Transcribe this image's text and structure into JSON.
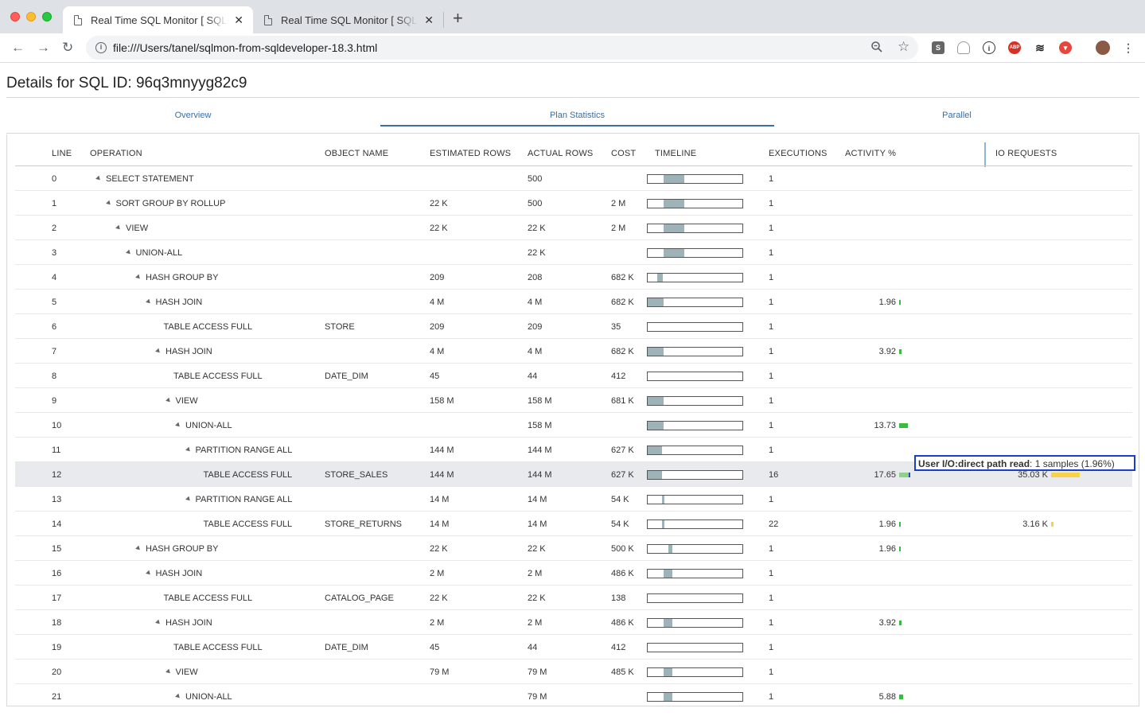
{
  "browser": {
    "tabs": [
      {
        "label": "Real Time SQL Monitor [ SQL ID: 96q3mnyyg82c9 ]",
        "close": "✕"
      },
      {
        "label": "Real Time SQL Monitor [ SQL ID: 96q3mnyyg82c9 ]",
        "close": "✕"
      }
    ],
    "new_tab": "+",
    "url": "file:///Users/tanel/sqlmon-from-sqldeveloper-18.3.html",
    "extensions": [
      "S",
      "ABP"
    ]
  },
  "page": {
    "title": "Details for SQL ID: 96q3mnyyg82c9",
    "tabs": [
      "Overview",
      "Plan Statistics",
      "Parallel"
    ],
    "active_tab": "Plan Statistics"
  },
  "columns": [
    "LINE",
    "OPERATION",
    "OBJECT NAME",
    "ESTIMATED ROWS",
    "ACTUAL ROWS",
    "COST",
    "TIMELINE",
    "EXECUTIONS",
    "ACTIVITY %",
    "IO REQUESTS"
  ],
  "rows": [
    {
      "line": "0",
      "depth": 0,
      "expand": true,
      "op": "SELECT STATEMENT",
      "obj": "",
      "est": "",
      "act": "500",
      "cost": "",
      "tl": [
        0.17,
        0.22
      ],
      "exec": "1",
      "activity": "",
      "act_pct": 0,
      "io": "",
      "io_frac": 0
    },
    {
      "line": "1",
      "depth": 1,
      "expand": true,
      "op": "SORT GROUP BY ROLLUP",
      "obj": "",
      "est": "22 K",
      "act": "500",
      "cost": "2 M",
      "tl": [
        0.17,
        0.22
      ],
      "exec": "1",
      "activity": "",
      "act_pct": 0,
      "io": "",
      "io_frac": 0
    },
    {
      "line": "2",
      "depth": 2,
      "expand": true,
      "op": "VIEW",
      "obj": "",
      "est": "22 K",
      "act": "22 K",
      "cost": "2 M",
      "tl": [
        0.17,
        0.22
      ],
      "exec": "1",
      "activity": "",
      "act_pct": 0,
      "io": "",
      "io_frac": 0
    },
    {
      "line": "3",
      "depth": 3,
      "expand": true,
      "op": "UNION-ALL",
      "obj": "",
      "est": "",
      "act": "22 K",
      "cost": "",
      "tl": [
        0.17,
        0.22
      ],
      "exec": "1",
      "activity": "",
      "act_pct": 0,
      "io": "",
      "io_frac": 0
    },
    {
      "line": "4",
      "depth": 4,
      "expand": true,
      "op": "HASH GROUP BY",
      "obj": "",
      "est": "209",
      "act": "208",
      "cost": "682 K",
      "tl": [
        0.1,
        0.06
      ],
      "exec": "1",
      "activity": "",
      "act_pct": 0,
      "io": "",
      "io_frac": 0
    },
    {
      "line": "5",
      "depth": 5,
      "expand": true,
      "op": "HASH JOIN",
      "obj": "",
      "est": "4 M",
      "act": "4 M",
      "cost": "682 K",
      "tl": [
        0.0,
        0.17
      ],
      "exec": "1",
      "activity": "1.96",
      "act_pct": 1.96,
      "io": "",
      "io_frac": 0
    },
    {
      "line": "6",
      "depth": 7,
      "expand": false,
      "op": "TABLE ACCESS FULL",
      "obj": "STORE",
      "est": "209",
      "act": "209",
      "cost": "35",
      "tl": [
        0,
        0
      ],
      "exec": "1",
      "activity": "",
      "act_pct": 0,
      "io": "",
      "io_frac": 0
    },
    {
      "line": "7",
      "depth": 6,
      "expand": true,
      "op": "HASH JOIN",
      "obj": "",
      "est": "4 M",
      "act": "4 M",
      "cost": "682 K",
      "tl": [
        0.0,
        0.17
      ],
      "exec": "1",
      "activity": "3.92",
      "act_pct": 3.92,
      "io": "",
      "io_frac": 0
    },
    {
      "line": "8",
      "depth": 8,
      "expand": false,
      "op": "TABLE ACCESS FULL",
      "obj": "DATE_DIM",
      "est": "45",
      "act": "44",
      "cost": "412",
      "tl": [
        0,
        0
      ],
      "exec": "1",
      "activity": "",
      "act_pct": 0,
      "io": "",
      "io_frac": 0
    },
    {
      "line": "9",
      "depth": 7,
      "expand": true,
      "op": "VIEW",
      "obj": "",
      "est": "158 M",
      "act": "158 M",
      "cost": "681 K",
      "tl": [
        0.0,
        0.17
      ],
      "exec": "1",
      "activity": "",
      "act_pct": 0,
      "io": "",
      "io_frac": 0
    },
    {
      "line": "10",
      "depth": 8,
      "expand": true,
      "op": "UNION-ALL",
      "obj": "",
      "est": "",
      "act": "158 M",
      "cost": "",
      "tl": [
        0.0,
        0.17
      ],
      "exec": "1",
      "activity": "13.73",
      "act_pct": 13.73,
      "io": "",
      "io_frac": 0
    },
    {
      "line": "11",
      "depth": 9,
      "expand": true,
      "op": "PARTITION RANGE ALL",
      "obj": "",
      "est": "144 M",
      "act": "144 M",
      "cost": "627 K",
      "tl": [
        0.0,
        0.15
      ],
      "exec": "1",
      "activity": "",
      "act_pct": 0,
      "io": "",
      "io_frac": 0
    },
    {
      "line": "12",
      "depth": 11,
      "expand": false,
      "op": "TABLE ACCESS FULL",
      "obj": "STORE_SALES",
      "est": "144 M",
      "act": "144 M",
      "cost": "627 K",
      "tl": [
        0.0,
        0.15
      ],
      "exec": "16",
      "activity": "17.65",
      "act_pct": 17.65,
      "io": "35.03 K",
      "io_frac": 1.0,
      "highlight": true
    },
    {
      "line": "13",
      "depth": 9,
      "expand": true,
      "op": "PARTITION RANGE ALL",
      "obj": "",
      "est": "14 M",
      "act": "14 M",
      "cost": "54 K",
      "tl": [
        0.15,
        0.02
      ],
      "exec": "1",
      "activity": "",
      "act_pct": 0,
      "io": "",
      "io_frac": 0
    },
    {
      "line": "14",
      "depth": 11,
      "expand": false,
      "op": "TABLE ACCESS FULL",
      "obj": "STORE_RETURNS",
      "est": "14 M",
      "act": "14 M",
      "cost": "54 K",
      "tl": [
        0.15,
        0.02
      ],
      "exec": "22",
      "activity": "1.96",
      "act_pct": 1.96,
      "io": "3.16 K",
      "io_frac": 0.09
    },
    {
      "line": "15",
      "depth": 4,
      "expand": true,
      "op": "HASH GROUP BY",
      "obj": "",
      "est": "22 K",
      "act": "22 K",
      "cost": "500 K",
      "tl": [
        0.22,
        0.04
      ],
      "exec": "1",
      "activity": "1.96",
      "act_pct": 1.96,
      "io": "",
      "io_frac": 0
    },
    {
      "line": "16",
      "depth": 5,
      "expand": true,
      "op": "HASH JOIN",
      "obj": "",
      "est": "2 M",
      "act": "2 M",
      "cost": "486 K",
      "tl": [
        0.17,
        0.09
      ],
      "exec": "1",
      "activity": "",
      "act_pct": 0,
      "io": "",
      "io_frac": 0
    },
    {
      "line": "17",
      "depth": 7,
      "expand": false,
      "op": "TABLE ACCESS FULL",
      "obj": "CATALOG_PAGE",
      "est": "22 K",
      "act": "22 K",
      "cost": "138",
      "tl": [
        0,
        0
      ],
      "exec": "1",
      "activity": "",
      "act_pct": 0,
      "io": "",
      "io_frac": 0
    },
    {
      "line": "18",
      "depth": 6,
      "expand": true,
      "op": "HASH JOIN",
      "obj": "",
      "est": "2 M",
      "act": "2 M",
      "cost": "486 K",
      "tl": [
        0.17,
        0.09
      ],
      "exec": "1",
      "activity": "3.92",
      "act_pct": 3.92,
      "io": "",
      "io_frac": 0
    },
    {
      "line": "19",
      "depth": 8,
      "expand": false,
      "op": "TABLE ACCESS FULL",
      "obj": "DATE_DIM",
      "est": "45",
      "act": "44",
      "cost": "412",
      "tl": [
        0,
        0
      ],
      "exec": "1",
      "activity": "",
      "act_pct": 0,
      "io": "",
      "io_frac": 0
    },
    {
      "line": "20",
      "depth": 7,
      "expand": true,
      "op": "VIEW",
      "obj": "",
      "est": "79 M",
      "act": "79 M",
      "cost": "485 K",
      "tl": [
        0.17,
        0.09
      ],
      "exec": "1",
      "activity": "",
      "act_pct": 0,
      "io": "",
      "io_frac": 0
    },
    {
      "line": "21",
      "depth": 8,
      "expand": true,
      "op": "UNION-ALL",
      "obj": "",
      "est": "",
      "act": "79 M",
      "cost": "",
      "tl": [
        0.17,
        0.09
      ],
      "exec": "1",
      "activity": "5.88",
      "act_pct": 5.88,
      "io": "",
      "io_frac": 0
    }
  ],
  "tooltip": {
    "event": "User I/O:direct path read",
    "detail": ": 1 samples (1.96%)"
  },
  "colors": {
    "activity_bar": "#3cb940",
    "io_bar": "#f8d24a",
    "timeline_fill": "#9db3b7",
    "link": "#3a6ea5",
    "tooltip_border": "#1a3fc6"
  }
}
